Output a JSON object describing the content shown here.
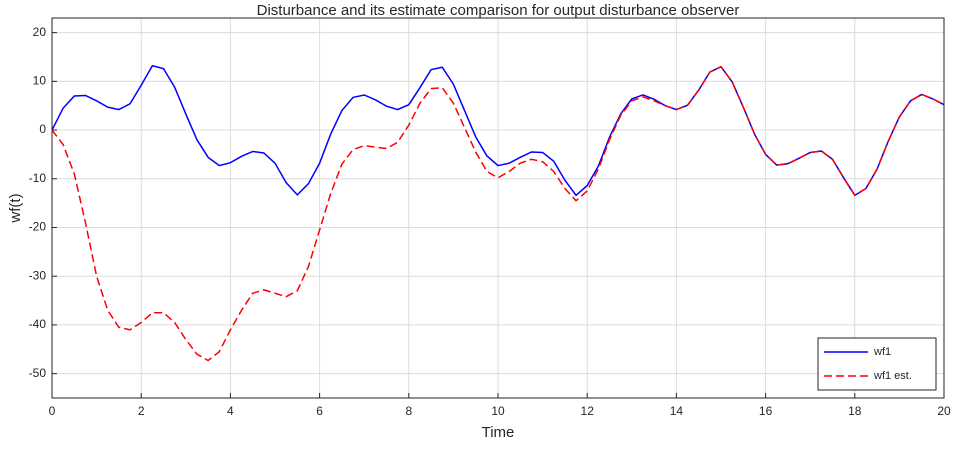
{
  "chart_data": {
    "type": "line",
    "title": "Disturbance and its estimate comparison for output disturbance observer",
    "xlabel": "Time",
    "ylabel": "wf(t)",
    "x": [
      0,
      0.25,
      0.5,
      0.75,
      1,
      1.25,
      1.5,
      1.75,
      2,
      2.25,
      2.5,
      2.75,
      3,
      3.25,
      3.5,
      3.75,
      4,
      4.25,
      4.5,
      4.75,
      5,
      5.25,
      5.5,
      5.75,
      6,
      6.25,
      6.5,
      6.75,
      7,
      7.25,
      7.5,
      7.75,
      8,
      8.25,
      8.5,
      8.75,
      9,
      9.25,
      9.5,
      9.75,
      10,
      10.25,
      10.5,
      10.75,
      11,
      11.25,
      11.5,
      11.75,
      12,
      12.25,
      12.5,
      12.75,
      13,
      13.25,
      13.5,
      13.75,
      14,
      14.25,
      14.5,
      14.75,
      15,
      15.25,
      15.5,
      15.75,
      16,
      16.25,
      16.5,
      16.75,
      17,
      17.25,
      17.5,
      17.75,
      18,
      18.25,
      18.5,
      18.75,
      19,
      19.25,
      19.5,
      19.75,
      20
    ],
    "series": [
      {
        "name": "wf1",
        "color": "#0000ff",
        "dash": "solid",
        "values": [
          0,
          4.5,
          7.0,
          7.1,
          6.0,
          4.7,
          4.2,
          5.4,
          9.2,
          13.2,
          12.6,
          8.8,
          3.3,
          -2.0,
          -5.6,
          -7.3,
          -6.7,
          -5.4,
          -4.4,
          -4.7,
          -6.8,
          -10.8,
          -13.3,
          -11.0,
          -6.8,
          -0.8,
          4.0,
          6.7,
          7.2,
          6.2,
          4.9,
          4.2,
          5.2,
          8.7,
          12.4,
          12.9,
          9.4,
          4.0,
          -1.4,
          -5.3,
          -7.3,
          -6.8,
          -5.6,
          -4.5,
          -4.6,
          -6.4,
          -10.3,
          -13.4,
          -11.4,
          -7.4,
          -1.5,
          3.3,
          6.4,
          7.2,
          6.3,
          5.0,
          4.2,
          5.1,
          8.2,
          11.9,
          13.0,
          9.9,
          4.7,
          -0.8,
          -5.0,
          -7.2,
          -6.9,
          -5.8,
          -4.6,
          -4.3,
          -6.0,
          -9.8,
          -13.4,
          -12.0,
          -8.0,
          -2.3,
          2.7,
          6.0,
          7.3,
          6.4,
          5.2
        ]
      },
      {
        "name": "wf1 est.",
        "color": "#ff0000",
        "dash": "dashed",
        "values": [
          0,
          -3,
          -9,
          -19,
          -30,
          -37,
          -40.5,
          -41,
          -39.5,
          -37.5,
          -37.5,
          -39.5,
          -43,
          -46,
          -47.3,
          -45.5,
          -41,
          -37,
          -33.5,
          -32.8,
          -33.5,
          -34.2,
          -33,
          -28,
          -20.5,
          -13,
          -7,
          -4,
          -3.2,
          -3.5,
          -3.8,
          -2.5,
          1,
          5.5,
          8.5,
          8.7,
          5.5,
          0.5,
          -4.5,
          -8.5,
          -9.8,
          -8.5,
          -6.8,
          -6,
          -6.5,
          -8.5,
          -12,
          -14.5,
          -12.5,
          -8,
          -2,
          3,
          6,
          6.8,
          6,
          5.0,
          4.2,
          5.1,
          8.2,
          11.9,
          13.0,
          9.9,
          4.7,
          -0.8,
          -5.0,
          -7.2,
          -6.9,
          -5.8,
          -4.6,
          -4.3,
          -6.0,
          -9.8,
          -13.4,
          -12.0,
          -8.0,
          -2.3,
          2.7,
          6.0,
          7.3,
          6.4,
          5.2
        ]
      }
    ],
    "xlim": [
      0,
      20
    ],
    "xticks": [
      0,
      2,
      4,
      6,
      8,
      10,
      12,
      14,
      16,
      18,
      20
    ],
    "ylim": [
      -55,
      23
    ],
    "yticks": [
      -50,
      -40,
      -30,
      -20,
      -10,
      0,
      10,
      20
    ],
    "grid": true,
    "legend": "southeast"
  }
}
